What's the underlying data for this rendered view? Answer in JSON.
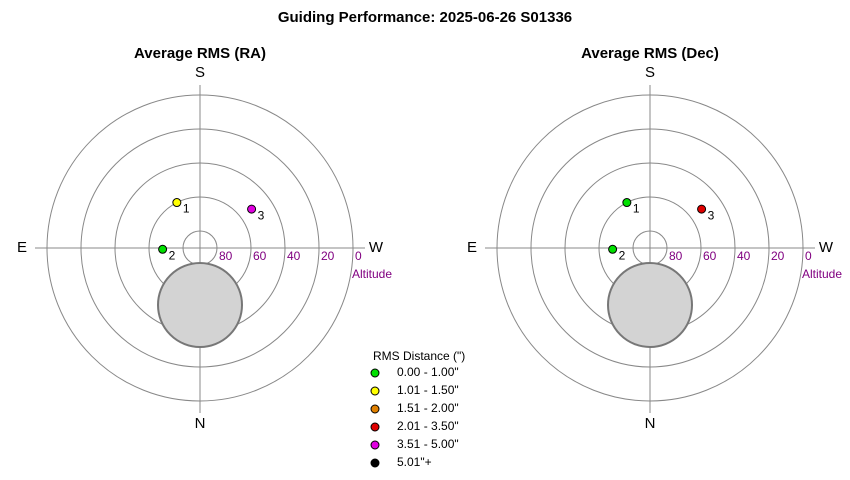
{
  "title": "Guiding Performance: 2025-06-26 S01336",
  "legend": {
    "title": "RMS Distance (\")",
    "items": [
      {
        "label": "0.00 - 1.00\"",
        "color": "#00e000"
      },
      {
        "label": "1.01 - 1.50\"",
        "color": "#ffff00"
      },
      {
        "label": "1.51 - 2.00\"",
        "color": "#e08000"
      },
      {
        "label": "2.01 - 3.50\"",
        "color": "#e00000"
      },
      {
        "label": "3.51 - 5.00\"",
        "color": "#e000e0"
      },
      {
        "label": "5.01\"+",
        "color": "#000000"
      }
    ]
  },
  "chart_data": [
    {
      "type": "polar",
      "title": "Average RMS (RA)",
      "directions": {
        "top": "S",
        "bottom": "N",
        "left": "E",
        "right": "W"
      },
      "radial_label": "Altitude",
      "rlim": [
        90,
        0
      ],
      "rticks": [
        80,
        60,
        40,
        20,
        0
      ],
      "points": {
        "labels": [
          "1",
          "2",
          "3"
        ],
        "azimuth": [
          153,
          88,
          233
        ],
        "altitude": [
          60,
          68,
          52
        ],
        "colors": [
          "#ffff00",
          "#00e000",
          "#e000e0"
        ]
      }
    },
    {
      "type": "polar",
      "title": "Average RMS (Dec)",
      "directions": {
        "top": "S",
        "bottom": "N",
        "left": "E",
        "right": "W"
      },
      "radial_label": "Altitude",
      "rlim": [
        90,
        0
      ],
      "rticks": [
        80,
        60,
        40,
        20,
        0
      ],
      "points": {
        "labels": [
          "1",
          "2",
          "3"
        ],
        "azimuth": [
          153,
          88,
          233
        ],
        "altitude": [
          60,
          68,
          52
        ],
        "colors": [
          "#00e000",
          "#00e000",
          "#e00000"
        ]
      }
    }
  ]
}
